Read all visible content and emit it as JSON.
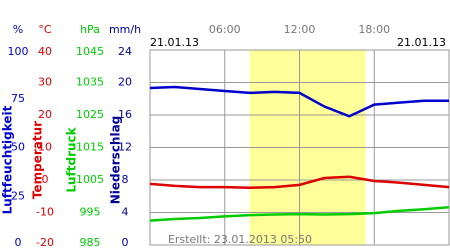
{
  "chart_data": {
    "type": "line",
    "date_start": "21.01.13",
    "date_end": "21.01.13",
    "footer": "Erstellt: 23.01.2013 05:50",
    "xlim": [
      0,
      24
    ],
    "xticks": [
      {
        "value": 6,
        "label": "06:00"
      },
      {
        "value": 12,
        "label": "12:00"
      },
      {
        "value": 18,
        "label": "18:00"
      }
    ],
    "daylight": [
      8,
      17.3
    ],
    "grid": true,
    "x": [
      0,
      2,
      4,
      6,
      8,
      10,
      12,
      14,
      16,
      18,
      20,
      22,
      24
    ],
    "axes": [
      {
        "unit": "%",
        "title": "Luftfeuchtigkeit",
        "color": "#0000cc",
        "ylim": [
          0,
          100
        ],
        "yticks": [
          0,
          25,
          50,
          75,
          100
        ],
        "values": [
          80.5,
          81,
          80,
          79,
          78,
          78.5,
          78,
          71,
          66,
          72,
          73,
          74,
          74
        ]
      },
      {
        "unit": "°C",
        "title": "Temperatur",
        "color": "#dd0000",
        "ylim": [
          -20,
          40
        ],
        "yticks": [
          -20,
          -10,
          0,
          10,
          20,
          30,
          40
        ],
        "values": [
          -1.2,
          -1.8,
          -2.2,
          -2.2,
          -2.4,
          -2.2,
          -1.5,
          0.6,
          1.0,
          -0.3,
          -0.8,
          -1.5,
          -2.2
        ]
      },
      {
        "unit": "hPa",
        "title": "Luftdruck",
        "color": "#00cc00",
        "ylim": [
          985,
          1045
        ],
        "yticks": [
          985,
          995,
          1005,
          1015,
          1025,
          1035,
          1045
        ],
        "values": [
          992.5,
          993,
          993.3,
          993.8,
          994.2,
          994.4,
          994.5,
          994.4,
          994.5,
          994.8,
          995.5,
          996,
          996.6
        ]
      },
      {
        "unit": "mm/h",
        "title": "Niederschlag",
        "color": "#000099",
        "ylim": [
          0,
          24
        ],
        "yticks": [
          0,
          4,
          8,
          12,
          16,
          20,
          24
        ]
      }
    ]
  }
}
